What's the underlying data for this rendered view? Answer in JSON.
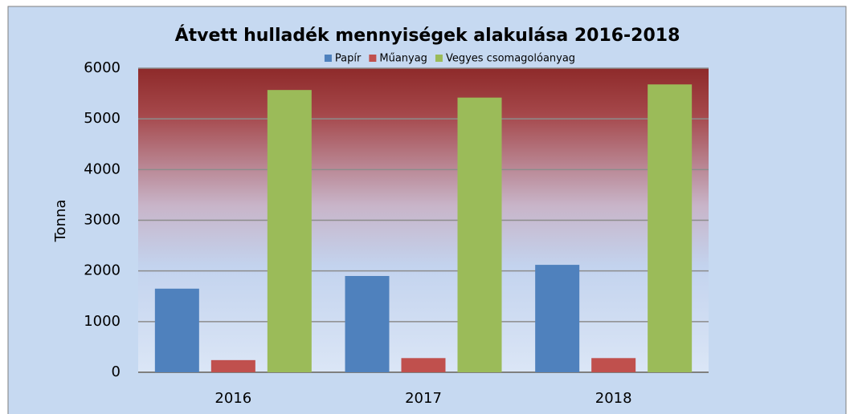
{
  "chart_data": {
    "type": "bar",
    "title": "Átvett hulladék mennyiségek alakulása 2016-2018",
    "y_label": "Tonna",
    "categories": [
      "2016",
      "2017",
      "2018"
    ],
    "series": [
      {
        "name": "Papír",
        "color": "#4f81bd",
        "values": [
          1650,
          1900,
          2120
        ]
      },
      {
        "name": "Műanyag",
        "color": "#c0504d",
        "values": [
          240,
          280,
          280
        ]
      },
      {
        "name": "Vegyes csomagolóanyag",
        "color": "#9bbb59",
        "values": [
          5570,
          5420,
          5680
        ]
      }
    ],
    "ylim": [
      0,
      6000
    ],
    "yticks": [
      0,
      1000,
      2000,
      3000,
      4000,
      5000,
      6000
    ],
    "grid": true,
    "legend": "top"
  }
}
